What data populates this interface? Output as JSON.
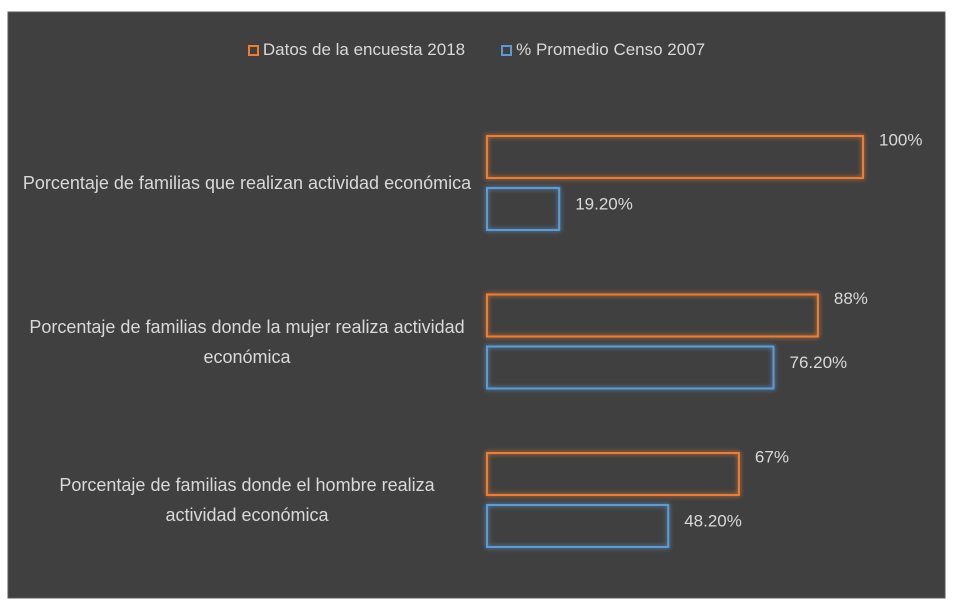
{
  "chart_data": {
    "type": "hbar",
    "categories": [
      "Porcentaje de familias que realizan actividad económica",
      "Porcentaje de familias donde la mujer realiza actividad económica",
      "Porcentaje de familias donde el hombre realiza actividad económica"
    ],
    "series": [
      {
        "name": "Datos de la encuesta 2018",
        "color": "#ed7d31",
        "values": [
          100,
          88,
          67
        ],
        "value_labels": [
          "100%",
          "88%",
          "67%"
        ]
      },
      {
        "name": "% Promedio Censo 2007",
        "color": "#5b9bd5",
        "values": [
          19.2,
          76.2,
          48.2
        ],
        "value_labels": [
          "19.20%",
          "76.20%",
          "48.20%"
        ]
      }
    ],
    "xlim": [
      0,
      100
    ],
    "legend": "top"
  }
}
